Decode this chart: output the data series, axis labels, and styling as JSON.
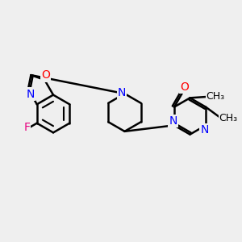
{
  "background_color": "#efefef",
  "bond_color": "#000000",
  "atom_colors": {
    "F": "#e8007f",
    "O": "#ff0000",
    "N": "#0000ff",
    "C": "#000000"
  },
  "line_width": 1.8,
  "font_size_atoms": 10,
  "font_size_methyl": 9
}
